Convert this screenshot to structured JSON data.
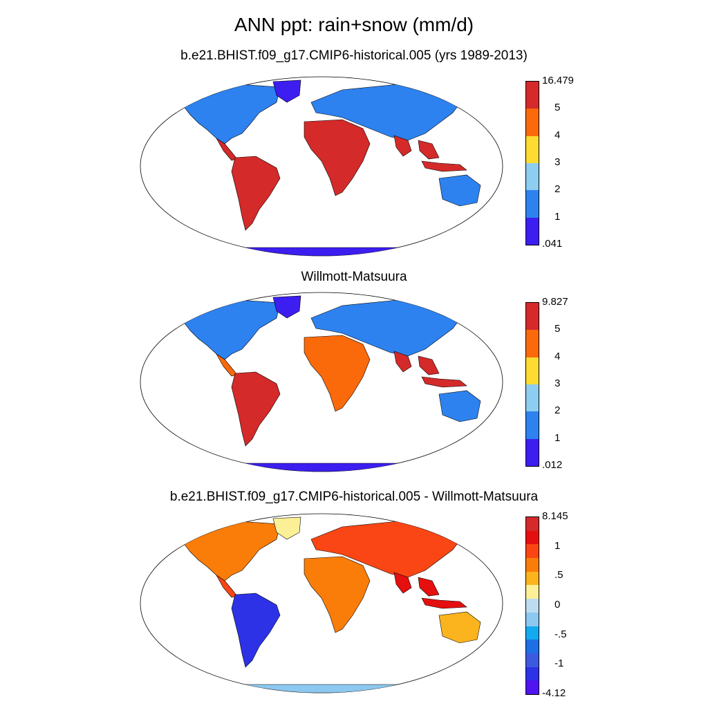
{
  "title": "ANN ppt: rain+snow (mm/d)",
  "panels": [
    {
      "id": "model",
      "subtitle": "b.e21.BHIST.f09_g17.CMIP6-historical.005 (yrs 1989-2013)",
      "colorbar": {
        "labels": [
          "16.479",
          "5",
          "4",
          "3",
          "2",
          "1",
          ".041"
        ],
        "colors": [
          "#d42a2a",
          "#fa6a0a",
          "#fcdc32",
          "#8ccdf0",
          "#2d82f0",
          "#3c1ef0"
        ]
      }
    },
    {
      "id": "obs",
      "subtitle": "Willmott-Matsuura",
      "colorbar": {
        "labels": [
          "9.827",
          "5",
          "4",
          "3",
          "2",
          "1",
          ".012"
        ],
        "colors": [
          "#d42a2a",
          "#fa6a0a",
          "#fcdc32",
          "#8ccdf0",
          "#2d82f0",
          "#3c1ef0"
        ]
      }
    },
    {
      "id": "diff",
      "subtitle": "b.e21.BHIST.f09_g17.CMIP6-historical.005 - Willmott-Matsuura",
      "colorbar": {
        "labels": [
          "8.145",
          "1",
          ".5",
          "0",
          "-.5",
          "-1",
          "-4.12"
        ],
        "colors": [
          "#d42a2a",
          "#e60f0f",
          "#fa4614",
          "#fa7d0a",
          "#fcb41e",
          "#fcf096",
          "#bedcf0",
          "#8cc8f0",
          "#14aaf0",
          "#1e6ee6",
          "#3c5ade",
          "#2d32e6",
          "#5014f0"
        ]
      }
    }
  ]
}
